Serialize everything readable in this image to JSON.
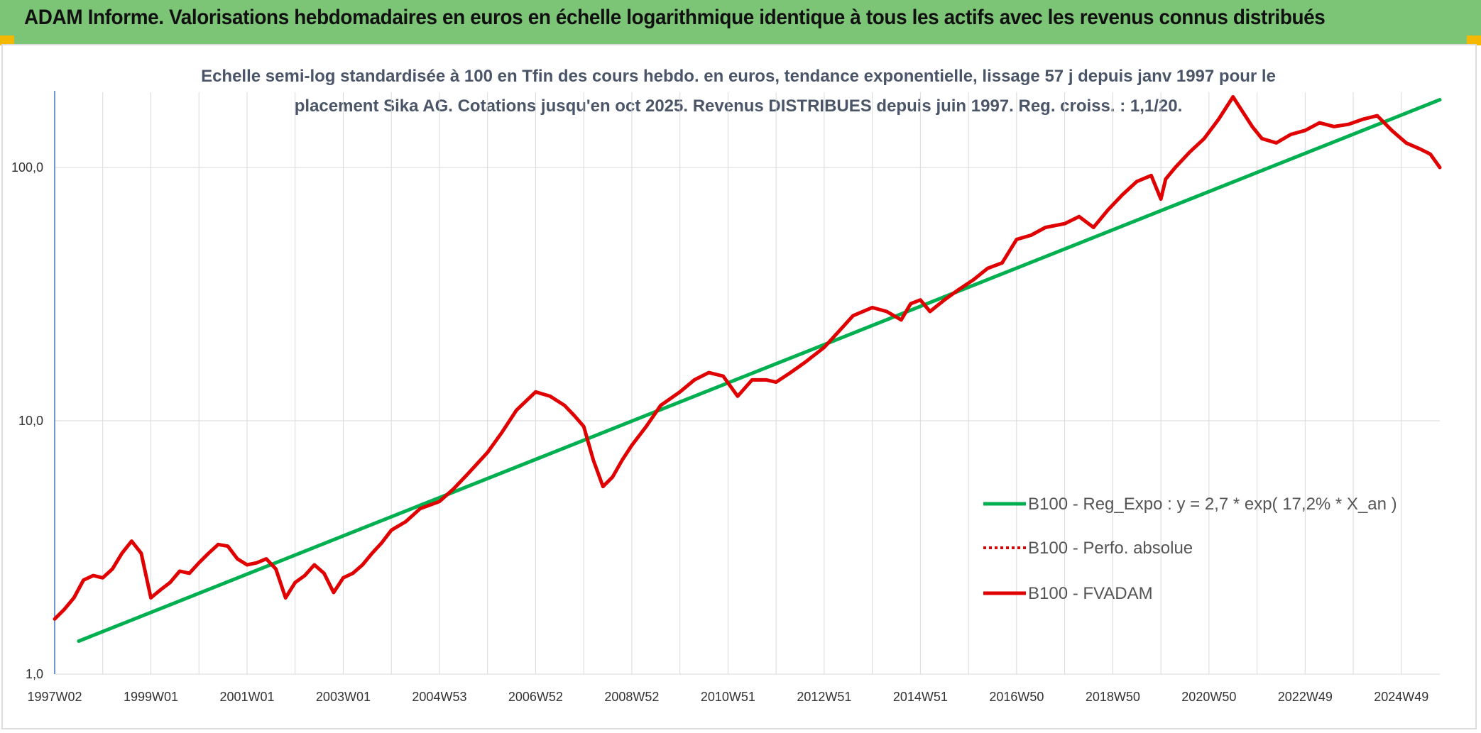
{
  "page": {
    "title": "ADAM Informe. Valorisations hebdomadaires en euros en échelle logarithmique identique à tous les actifs avec les revenus connus distribués"
  },
  "colors": {
    "title_bg": "#7cc576",
    "regression": "#00b050",
    "fvadam": "#e00000",
    "perfo": "#e00000",
    "grid": "#d9d9d9",
    "axis": "#4472c4"
  },
  "chart_data": {
    "type": "line",
    "title_line1": "Echelle semi-log standardisée à 100 en Tfin des cours hebdo. en euros, tendance exponentielle, lissage 57 j depuis janv 1997 pour le",
    "title_line2": "placement Sika AG. Cotations jusqu'en oct 2025. Revenus DISTRIBUES depuis juin 1997. Reg. croiss. : 1,1/20.",
    "y_scale": "log",
    "ylim": [
      1,
      200
    ],
    "y_ticks": [
      1,
      10,
      100
    ],
    "y_tick_labels": [
      "1,0",
      "10,0",
      "100,0"
    ],
    "xlim": [
      1997.0,
      2025.8
    ],
    "x_ticks": [
      1997.0,
      1999.0,
      2001.0,
      2003.0,
      2005.0,
      2007.0,
      2009.0,
      2011.0,
      2013.0,
      2015.0,
      2017.0,
      2019.0,
      2021.0,
      2023.0,
      2025.0
    ],
    "x_tick_labels": [
      "1997W02",
      "1999W01",
      "2001W01",
      "2003W01",
      "2004W53",
      "2006W52",
      "2008W52",
      "2010W51",
      "2012W51",
      "2014W51",
      "2016W50",
      "2018W50",
      "2020W50",
      "2022W49",
      "2024W49"
    ],
    "grid": true,
    "legend_position": "bottom-right",
    "series": [
      {
        "name": "B100 - Reg_Expo : y = 2,7 * exp( 17,2% *  X_an )",
        "style": "solid",
        "color": "#00b050",
        "x": [
          1997.5,
          2025.8
        ],
        "y": [
          1.35,
          185
        ]
      },
      {
        "name": "B100 - Perfo. absolue",
        "style": "dotted",
        "color": "#e00000",
        "x": [],
        "y": []
      },
      {
        "name": "B100 - FVADAM",
        "style": "solid",
        "color": "#e00000",
        "x": [
          1997.0,
          1997.2,
          1997.4,
          1997.6,
          1997.8,
          1998.0,
          1998.2,
          1998.4,
          1998.6,
          1998.8,
          1999.0,
          1999.2,
          1999.4,
          1999.6,
          1999.8,
          2000.0,
          2000.2,
          2000.4,
          2000.6,
          2000.8,
          2001.0,
          2001.2,
          2001.4,
          2001.6,
          2001.8,
          2002.0,
          2002.2,
          2002.4,
          2002.6,
          2002.8,
          2003.0,
          2003.2,
          2003.4,
          2003.6,
          2003.8,
          2004.0,
          2004.3,
          2004.6,
          2005.0,
          2005.3,
          2005.6,
          2006.0,
          2006.3,
          2006.6,
          2007.0,
          2007.3,
          2007.6,
          2007.8,
          2008.0,
          2008.2,
          2008.4,
          2008.6,
          2008.8,
          2009.0,
          2009.3,
          2009.6,
          2010.0,
          2010.3,
          2010.6,
          2010.9,
          2011.2,
          2011.5,
          2011.8,
          2012.0,
          2012.3,
          2012.6,
          2013.0,
          2013.3,
          2013.6,
          2014.0,
          2014.3,
          2014.6,
          2014.8,
          2015.0,
          2015.2,
          2015.5,
          2015.8,
          2016.1,
          2016.4,
          2016.7,
          2017.0,
          2017.3,
          2017.6,
          2018.0,
          2018.3,
          2018.6,
          2018.9,
          2019.2,
          2019.5,
          2019.8,
          2020.0,
          2020.1,
          2020.3,
          2020.6,
          2020.9,
          2021.2,
          2021.5,
          2021.9,
          2022.1,
          2022.4,
          2022.7,
          2023.0,
          2023.3,
          2023.6,
          2023.9,
          2024.2,
          2024.5,
          2024.8,
          2025.1,
          2025.4,
          2025.6,
          2025.8
        ],
        "y": [
          1.65,
          1.8,
          2.0,
          2.35,
          2.45,
          2.4,
          2.6,
          3.0,
          3.35,
          3.0,
          2.0,
          2.15,
          2.3,
          2.55,
          2.5,
          2.75,
          3.0,
          3.25,
          3.2,
          2.85,
          2.7,
          2.75,
          2.85,
          2.6,
          2.0,
          2.3,
          2.45,
          2.7,
          2.5,
          2.1,
          2.4,
          2.5,
          2.7,
          3.0,
          3.3,
          3.7,
          4.0,
          4.5,
          4.8,
          5.4,
          6.2,
          7.5,
          9.0,
          11.0,
          13.0,
          12.5,
          11.5,
          10.5,
          9.5,
          7.0,
          5.5,
          6.0,
          7.0,
          8.0,
          9.5,
          11.5,
          13.0,
          14.5,
          15.5,
          15.0,
          12.5,
          14.5,
          14.5,
          14.2,
          15.5,
          17.0,
          19.5,
          22.5,
          26.0,
          28.0,
          27.0,
          25.0,
          29.0,
          30.0,
          27.0,
          30.0,
          33.0,
          36.0,
          40.0,
          42.0,
          52.0,
          54.0,
          58.0,
          60.0,
          64.0,
          58.0,
          68.0,
          78.0,
          88.0,
          93.0,
          75.0,
          90.0,
          100.0,
          115.0,
          130.0,
          155.0,
          190.0,
          145.0,
          130.0,
          125.0,
          135.0,
          140.0,
          150.0,
          145.0,
          148.0,
          155.0,
          160.0,
          140.0,
          125.0,
          118.0,
          113.0,
          100.0
        ]
      }
    ]
  }
}
